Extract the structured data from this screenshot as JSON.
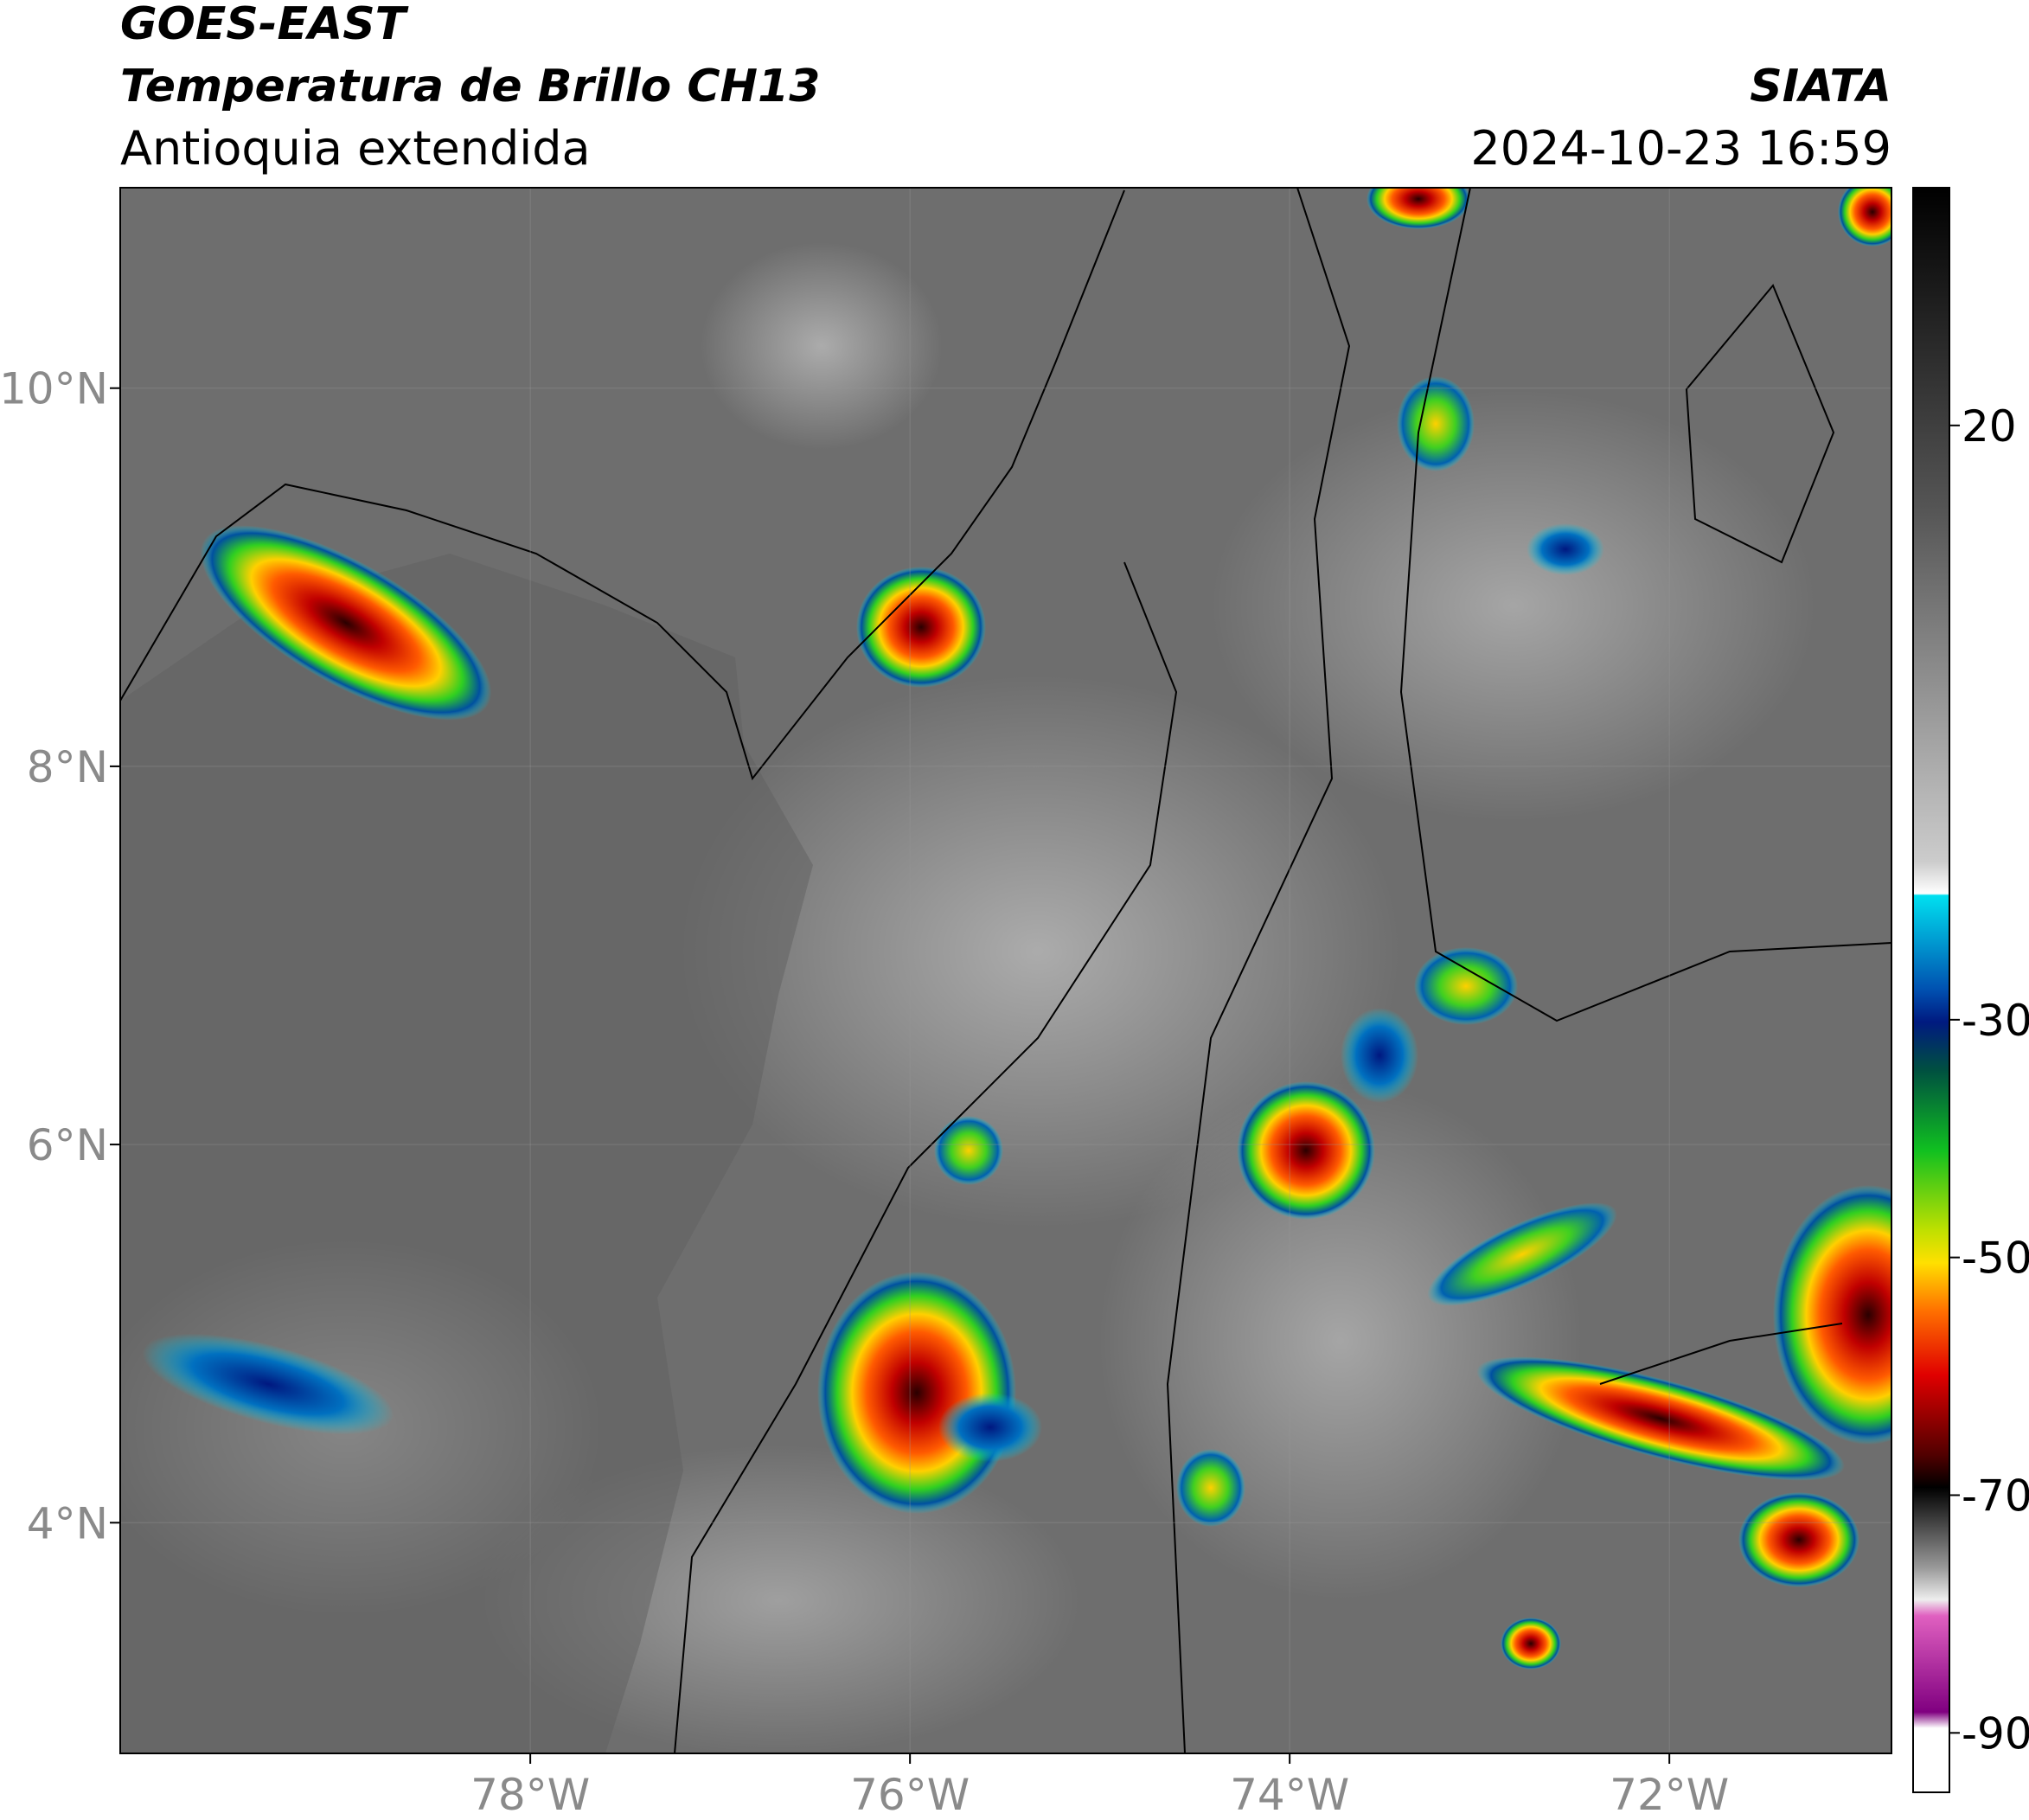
{
  "header": {
    "satellite": "GOES-EAST",
    "product": "Temperatura de Brillo CH13",
    "region": "Antioquia extendida",
    "source": "SIATA",
    "datetime": "2024-10-23 16:59"
  },
  "map": {
    "lonlim": [
      -80.16,
      -70.83
    ],
    "latlim": [
      2.78,
      11.06
    ],
    "lon_ticks": [
      {
        "value": -78,
        "label": "78°W"
      },
      {
        "value": -76,
        "label": "76°W"
      },
      {
        "value": -74,
        "label": "74°W"
      },
      {
        "value": -72,
        "label": "72°W"
      }
    ],
    "lat_ticks": [
      {
        "value": 4,
        "label": "4°N"
      },
      {
        "value": 6,
        "label": "6°N"
      },
      {
        "value": 8,
        "label": "8°N"
      },
      {
        "value": 10,
        "label": "10°N"
      }
    ]
  },
  "colorbar": {
    "lim": [
      -95,
      40
    ],
    "ticks": [
      -90,
      -70,
      -50,
      -30,
      20
    ]
  }
}
